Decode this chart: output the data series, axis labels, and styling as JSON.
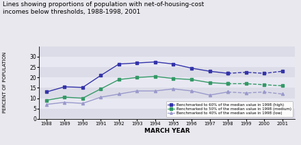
{
  "title": "Lines showing proportions of population with net-of-housing-cost\nincomes below thresholds, 1988-1998, 2001",
  "xlabel": "MARCH YEAR",
  "ylabel": "PERCENT OF POPULATION",
  "years_solid": [
    1988,
    1989,
    1990,
    1991,
    1992,
    1993,
    1994,
    1995,
    1996,
    1997,
    1998
  ],
  "years_dashed": [
    1998,
    1999,
    2000,
    2001
  ],
  "high_solid": [
    13.0,
    15.5,
    15.2,
    21.0,
    26.5,
    27.0,
    27.5,
    26.5,
    24.5,
    23.0,
    22.0
  ],
  "high_dashed": [
    22.0,
    22.5,
    22.0,
    23.0
  ],
  "medium_solid": [
    9.0,
    10.5,
    10.0,
    14.5,
    19.0,
    20.0,
    20.5,
    19.5,
    19.0,
    17.5,
    17.0
  ],
  "medium_dashed": [
    17.0,
    17.0,
    16.5,
    16.0
  ],
  "low_solid": [
    7.0,
    8.0,
    7.5,
    10.5,
    12.0,
    13.5,
    13.5,
    14.5,
    13.5,
    11.5,
    13.0
  ],
  "low_dashed": [
    13.0,
    12.5,
    13.0,
    12.0
  ],
  "color_high": "#3333aa",
  "color_medium": "#339966",
  "color_low": "#9999cc",
  "ylim": [
    0,
    35
  ],
  "yticks": [
    0,
    5,
    10,
    15,
    20,
    25,
    30
  ],
  "fig_bg": "#e8e8ee",
  "plot_bg": "#dcdce8",
  "band_alt": "#e8e8f2",
  "legend_labels": [
    "Benchmarked to 60% of the median value in 1998 (high)",
    "Benchmarked to 50% of the median value in 1998 (medium)",
    "Benchmarked to 40% of the median value in 1998 (low)"
  ]
}
